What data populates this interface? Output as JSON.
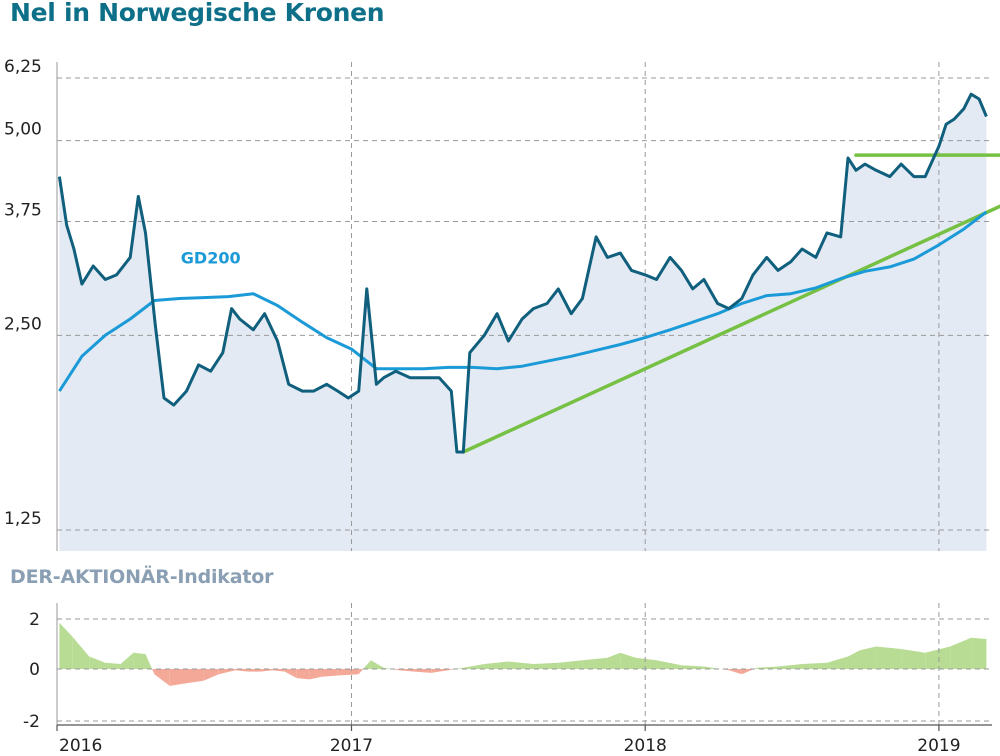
{
  "title": "Nel in Norwegische Kronen",
  "indicator_title": "DER-AKTIONÄR-Indikator",
  "colors": {
    "price": "#0f5f7d",
    "ma": "#1b9ad8",
    "trend": "#76c043",
    "area": "#e4eaf3",
    "indicator_positive": "#b8dc93",
    "indicator_negative": "#f4a898",
    "title": "#0e6f89",
    "subtitle": "#8a9fb3"
  },
  "chart_data": [
    {
      "type": "line",
      "title": "Nel in Norwegische Kronen",
      "y_scale": "log",
      "ylim": [
        1.25,
        6.25
      ],
      "y_ticks": [
        "6,25",
        "5,00",
        "3,75",
        "2,50",
        "1,25"
      ],
      "y_tick_values": [
        6.25,
        5.0,
        3.75,
        2.5,
        1.25
      ],
      "x_ticks": [
        "2016",
        "2017",
        "2018",
        "2019"
      ],
      "x_tick_values": [
        "2016-01-01",
        "2017-01-01",
        "2018-01-01",
        "2019-01-01"
      ],
      "xlim": [
        "2016-01-01",
        "2019-03-08"
      ],
      "grid": true,
      "series": [
        {
          "name": "",
          "role": "price",
          "x": [
            "2016-01-04",
            "2016-01-13",
            "2016-01-22",
            "2016-02-01",
            "2016-02-15",
            "2016-03-01",
            "2016-03-15",
            "2016-04-01",
            "2016-04-11",
            "2016-04-20",
            "2016-05-02",
            "2016-05-13",
            "2016-05-25",
            "2016-06-10",
            "2016-06-25",
            "2016-07-10",
            "2016-07-25",
            "2016-08-05",
            "2016-08-15",
            "2016-09-01",
            "2016-09-15",
            "2016-10-01",
            "2016-10-15",
            "2016-11-01",
            "2016-11-15",
            "2016-12-01",
            "2016-12-15",
            "2016-12-28",
            "2017-01-10",
            "2017-01-20",
            "2017-02-01",
            "2017-02-10",
            "2017-02-25",
            "2017-03-15",
            "2017-04-01",
            "2017-04-20",
            "2017-05-05",
            "2017-05-12",
            "2017-05-20",
            "2017-05-28",
            "2017-06-15",
            "2017-07-01",
            "2017-07-15",
            "2017-08-01",
            "2017-08-15",
            "2017-09-01",
            "2017-09-15",
            "2017-10-01",
            "2017-10-15",
            "2017-11-01",
            "2017-11-15",
            "2017-12-01",
            "2017-12-15",
            "2018-01-01",
            "2018-01-15",
            "2018-02-01",
            "2018-02-15",
            "2018-03-01",
            "2018-03-15",
            "2018-04-01",
            "2018-04-15",
            "2018-05-01",
            "2018-05-15",
            "2018-06-01",
            "2018-06-15",
            "2018-07-01",
            "2018-07-15",
            "2018-08-01",
            "2018-08-15",
            "2018-09-01",
            "2018-09-10",
            "2018-09-20",
            "2018-10-01",
            "2018-10-15",
            "2018-11-01",
            "2018-11-15",
            "2018-12-01",
            "2018-12-15",
            "2019-01-01",
            "2019-01-10",
            "2019-01-20",
            "2019-02-01",
            "2019-02-10",
            "2019-02-20",
            "2019-03-01"
          ],
          "y": [
            4.4,
            3.7,
            3.4,
            3.0,
            3.2,
            3.05,
            3.1,
            3.3,
            4.1,
            3.6,
            2.6,
            2.0,
            1.95,
            2.05,
            2.25,
            2.2,
            2.35,
            2.75,
            2.65,
            2.55,
            2.7,
            2.45,
            2.1,
            2.05,
            2.05,
            2.1,
            2.05,
            2.0,
            2.05,
            2.95,
            2.1,
            2.15,
            2.2,
            2.15,
            2.15,
            2.15,
            2.05,
            1.65,
            1.65,
            2.35,
            2.5,
            2.7,
            2.45,
            2.65,
            2.75,
            2.8,
            2.95,
            2.7,
            2.85,
            3.55,
            3.3,
            3.35,
            3.15,
            3.1,
            3.05,
            3.3,
            3.15,
            2.95,
            3.05,
            2.8,
            2.75,
            2.85,
            3.1,
            3.3,
            3.15,
            3.25,
            3.4,
            3.3,
            3.6,
            3.55,
            4.7,
            4.5,
            4.6,
            4.5,
            4.4,
            4.6,
            4.4,
            4.4,
            4.9,
            5.3,
            5.4,
            5.6,
            5.9,
            5.8,
            5.45
          ]
        },
        {
          "name": "GD200",
          "role": "moving-average",
          "x": [
            "2016-01-04",
            "2016-02-01",
            "2016-03-01",
            "2016-04-01",
            "2016-05-01",
            "2016-06-01",
            "2016-07-01",
            "2016-08-01",
            "2016-09-01",
            "2016-10-01",
            "2016-11-01",
            "2016-12-01",
            "2017-01-01",
            "2017-02-01",
            "2017-03-01",
            "2017-04-01",
            "2017-05-01",
            "2017-06-01",
            "2017-07-01",
            "2017-08-01",
            "2017-09-01",
            "2017-10-01",
            "2017-11-01",
            "2017-12-01",
            "2018-01-01",
            "2018-02-01",
            "2018-03-01",
            "2018-04-01",
            "2018-05-01",
            "2018-06-01",
            "2018-07-01",
            "2018-08-01",
            "2018-09-01",
            "2018-10-01",
            "2018-11-01",
            "2018-12-01",
            "2019-01-01",
            "2019-02-01",
            "2019-03-01"
          ],
          "y": [
            2.05,
            2.32,
            2.5,
            2.65,
            2.83,
            2.85,
            2.86,
            2.87,
            2.9,
            2.78,
            2.62,
            2.48,
            2.38,
            2.22,
            2.22,
            2.22,
            2.23,
            2.23,
            2.22,
            2.24,
            2.28,
            2.32,
            2.37,
            2.42,
            2.48,
            2.55,
            2.62,
            2.7,
            2.8,
            2.88,
            2.9,
            2.96,
            3.06,
            3.14,
            3.19,
            3.28,
            3.45,
            3.65,
            3.88
          ]
        },
        {
          "name": "",
          "role": "trend-support",
          "x": [
            "2017-05-20",
            "2019-03-20"
          ],
          "y": [
            1.65,
            3.97
          ]
        },
        {
          "name": "",
          "role": "trend-resistance",
          "x": [
            "2018-09-20",
            "2019-03-20"
          ],
          "y": [
            4.75,
            4.75
          ]
        }
      ]
    },
    {
      "type": "area",
      "title": "DER-AKTIONÄR-Indikator",
      "ylim": [
        -2,
        2
      ],
      "y_ticks": [
        "2",
        "0",
        "-2"
      ],
      "y_tick_values": [
        2,
        0,
        -2
      ],
      "x_ticks": [
        "2016",
        "2017",
        "2018",
        "2019"
      ],
      "x_tick_values": [
        "2016-01-01",
        "2017-01-01",
        "2018-01-01",
        "2019-01-01"
      ],
      "xlim": [
        "2016-01-01",
        "2019-03-08"
      ],
      "series": [
        {
          "name": "",
          "x": [
            "2016-01-04",
            "2016-01-20",
            "2016-02-10",
            "2016-03-01",
            "2016-03-20",
            "2016-04-05",
            "2016-04-20",
            "2016-05-01",
            "2016-05-20",
            "2016-06-10",
            "2016-07-01",
            "2016-07-20",
            "2016-08-10",
            "2016-08-25",
            "2016-09-10",
            "2016-09-25",
            "2016-10-10",
            "2016-10-25",
            "2016-11-10",
            "2016-11-25",
            "2016-12-15",
            "2017-01-10",
            "2017-01-25",
            "2017-02-10",
            "2017-03-01",
            "2017-03-20",
            "2017-04-10",
            "2017-05-01",
            "2017-05-20",
            "2017-06-15",
            "2017-07-15",
            "2017-08-15",
            "2017-09-15",
            "2017-10-15",
            "2017-11-15",
            "2017-12-01",
            "2017-12-20",
            "2018-01-15",
            "2018-02-15",
            "2018-03-15",
            "2018-04-15",
            "2018-05-01",
            "2018-05-20",
            "2018-06-15",
            "2018-07-15",
            "2018-08-15",
            "2018-09-10",
            "2018-09-25",
            "2018-10-15",
            "2018-11-15",
            "2018-12-15",
            "2019-01-15",
            "2019-02-10",
            "2019-03-01"
          ],
          "y": [
            1.85,
            1.3,
            0.5,
            0.25,
            0.2,
            0.65,
            0.6,
            -0.2,
            -0.65,
            -0.55,
            -0.45,
            -0.2,
            -0.05,
            -0.1,
            -0.1,
            -0.05,
            -0.1,
            -0.35,
            -0.4,
            -0.3,
            -0.25,
            -0.2,
            0.35,
            0.05,
            -0.05,
            -0.1,
            -0.15,
            -0.05,
            0.05,
            0.2,
            0.3,
            0.2,
            0.25,
            0.35,
            0.45,
            0.65,
            0.45,
            0.35,
            0.15,
            0.1,
            -0.05,
            -0.2,
            0.05,
            0.1,
            0.2,
            0.25,
            0.5,
            0.75,
            0.9,
            0.8,
            0.65,
            0.9,
            1.25,
            1.2
          ]
        }
      ]
    }
  ]
}
